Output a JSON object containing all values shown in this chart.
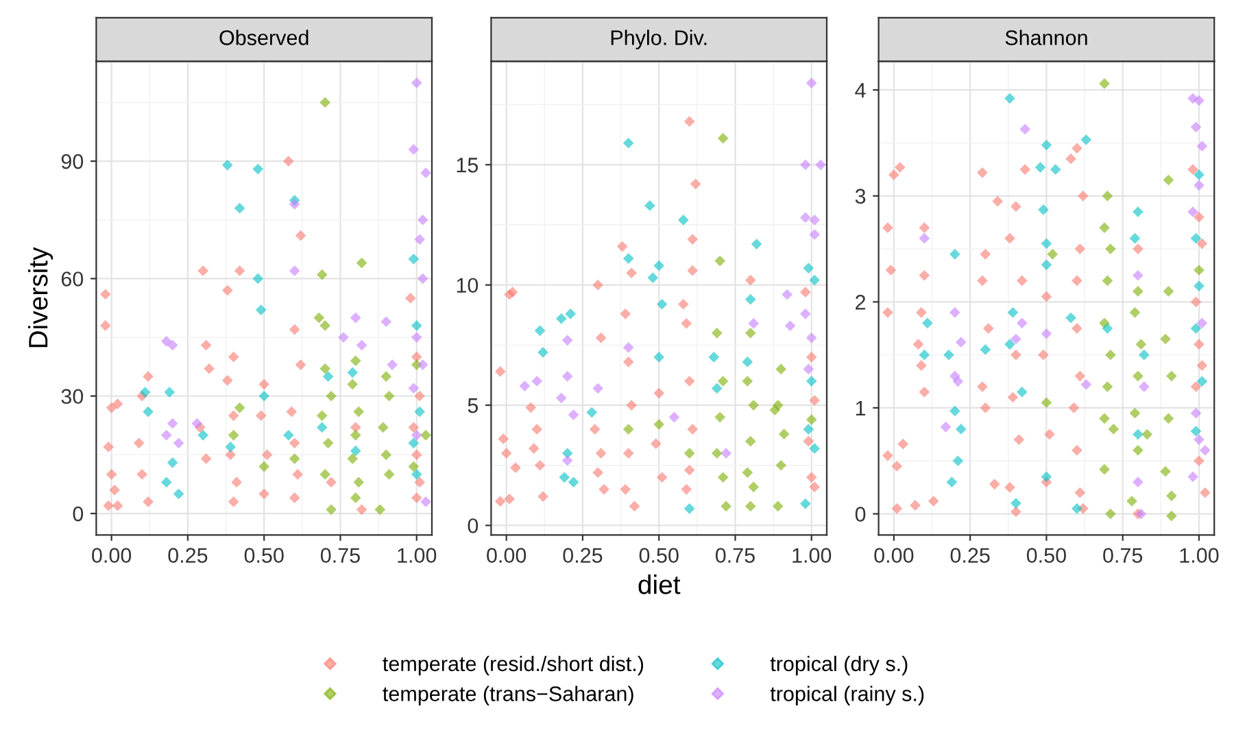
{
  "chart_data": [
    {
      "type": "scatter",
      "title": "Observed",
      "ylabel": "Diversity",
      "marker": "diamond",
      "grid": true,
      "xlim": [
        -0.05,
        1.05
      ],
      "xticks": [
        {
          "value": 0,
          "label": "0.00"
        },
        {
          "value": 0.25,
          "label": "0.25"
        },
        {
          "value": 0.5,
          "label": "0.50"
        },
        {
          "value": 0.75,
          "label": "0.75"
        },
        {
          "value": 1,
          "label": "1.00"
        }
      ],
      "ylim": [
        -5.5,
        115.5
      ],
      "yticks": [
        0,
        30,
        60,
        90
      ],
      "series": [
        {
          "color": "#f8766d",
          "x": [
            -0.02,
            -0.02,
            0,
            0.02,
            -0.01,
            0,
            0.01,
            -0.01,
            0.02,
            0.1,
            0.09,
            0.1,
            0.12,
            0.12,
            0.3,
            0.31,
            0.32,
            0.29,
            0.31,
            0.38,
            0.42,
            0.4,
            0.38,
            0.4,
            0.39,
            0.41,
            0.4,
            0.5,
            0.49,
            0.51,
            0.5,
            0.58,
            0.62,
            0.6,
            0.62,
            0.59,
            0.6,
            0.61,
            0.6,
            0.82,
            0.98,
            1.0,
            1.01,
            0.99,
            1.0,
            1.01,
            1.0,
            0.8,
            0.72
          ],
          "values": [
            56,
            48,
            27,
            28,
            17,
            10,
            6,
            2,
            2,
            30,
            18,
            10,
            35,
            3,
            62,
            43,
            37,
            22,
            14,
            57,
            62,
            40,
            34,
            25,
            15,
            8,
            3,
            33,
            25,
            15,
            5,
            90,
            71,
            47,
            38,
            26,
            18,
            10,
            4,
            1,
            55,
            40,
            30,
            22,
            15,
            8,
            4,
            22,
            8
          ]
        },
        {
          "color": "#7cae00",
          "x": [
            0.69,
            0.68,
            0.7,
            0.7,
            0.72,
            0.69,
            0.71,
            0.7,
            0.72,
            0.8,
            0.79,
            0.81,
            0.8,
            0.79,
            0.81,
            0.8,
            0.82,
            0.9,
            0.91,
            0.89,
            0.9,
            0.91,
            0.88,
            1.0,
            1.03,
            0.99,
            0.4,
            0.5,
            0.6,
            0.42,
            0.7
          ],
          "values": [
            61,
            50,
            48,
            37,
            30,
            25,
            18,
            10,
            1,
            39,
            33,
            26,
            20,
            14,
            8,
            4,
            64,
            35,
            30,
            22,
            15,
            10,
            1,
            38,
            20,
            12,
            20,
            12,
            14,
            27,
            105
          ]
        },
        {
          "color": "#00bfc4",
          "x": [
            0.38,
            0.48,
            0.42,
            0.6,
            0.48,
            0.49,
            0.5,
            0.2,
            0.18,
            0.22,
            0.19,
            0.11,
            0.12,
            0.39,
            0.69,
            0.71,
            0.79,
            0.8,
            0.99,
            1.0,
            1.01,
            0.99,
            1.0,
            0.3,
            0.58
          ],
          "values": [
            89,
            88,
            78,
            80,
            60,
            52,
            30,
            13,
            8,
            5,
            31,
            31,
            26,
            17,
            22,
            35,
            36,
            16,
            65,
            48,
            26,
            18,
            10,
            20,
            20
          ]
        },
        {
          "color": "#c77cff",
          "x": [
            1.0,
            0.99,
            1.03,
            1.02,
            1.01,
            1.02,
            1.0,
            1.02,
            0.99,
            1.0,
            1.03,
            0.18,
            0.2,
            0.2,
            0.18,
            0.22,
            0.6,
            0.8,
            0.82,
            0.9,
            0.92,
            0.76,
            0.28,
            0.6
          ],
          "values": [
            110,
            93,
            87,
            75,
            70,
            60,
            45,
            38,
            32,
            20,
            3,
            44,
            43,
            23,
            20,
            18,
            79,
            50,
            43,
            49,
            38,
            45,
            23,
            62
          ]
        }
      ]
    },
    {
      "type": "scatter",
      "title": "Phylo. Div.",
      "xlabel": "diet",
      "marker": "diamond",
      "grid": true,
      "legend": "bottom",
      "xlim": [
        -0.05,
        1.05
      ],
      "xticks": [
        {
          "value": 0,
          "label": "0.00"
        },
        {
          "value": 0.25,
          "label": "0.25"
        },
        {
          "value": 0.5,
          "label": "0.50"
        },
        {
          "value": 0.75,
          "label": "0.75"
        },
        {
          "value": 1,
          "label": "1.00"
        }
      ],
      "ylim": [
        -0.4,
        19.3
      ],
      "yticks": [
        0,
        5,
        10,
        15
      ],
      "series": [
        {
          "name": "temperate (resid./short dist.)",
          "color": "#f8766d",
          "x": [
            -0.02,
            0.02,
            0.01,
            -0.01,
            0,
            -0.02,
            0.01,
            0.03,
            0.08,
            0.1,
            0.09,
            0.11,
            0.12,
            0.3,
            0.31,
            0.29,
            0.31,
            0.3,
            0.32,
            0.38,
            0.39,
            0.4,
            0.41,
            0.4,
            0.39,
            0.42,
            0.41,
            0.5,
            0.49,
            0.51,
            0.58,
            0.6,
            0.62,
            0.61,
            0.61,
            0.59,
            0.6,
            0.61,
            0.6,
            0.59,
            0.98,
            1.0,
            1.01,
            0.99,
            1.0,
            1.01,
            0.8
          ],
          "values": [
            6.4,
            9.7,
            9.6,
            3.6,
            3,
            1,
            1.1,
            2.4,
            4.9,
            4,
            3.2,
            2.5,
            1.2,
            10,
            7.8,
            4,
            3,
            2.2,
            1.5,
            11.6,
            8.8,
            6.8,
            5,
            3,
            1.5,
            0.8,
            10.5,
            5.5,
            3.4,
            2,
            9.2,
            16.8,
            14.2,
            11.9,
            10.6,
            8.4,
            6,
            4,
            2.3,
            1.5,
            9.7,
            7,
            5.2,
            3.5,
            2,
            1.6,
            10.2
          ]
        },
        {
          "name": "temperate (trans−Saharan)",
          "color": "#7cae00",
          "x": [
            0.71,
            0.7,
            0.69,
            0.71,
            0.7,
            0.69,
            0.71,
            0.72,
            0.8,
            0.79,
            0.81,
            0.8,
            0.79,
            0.81,
            0.8,
            0.9,
            0.89,
            0.91,
            0.9,
            0.89,
            0.5,
            0.6,
            0.4,
            1.0,
            0.88
          ],
          "values": [
            16.1,
            11,
            8,
            6,
            4.5,
            3,
            2,
            0.8,
            8,
            6,
            5,
            3.5,
            2.2,
            1.6,
            0.8,
            6.5,
            5,
            3.8,
            2.5,
            0.8,
            4.2,
            3,
            4,
            4.4,
            4.8
          ]
        },
        {
          "name": "tropical (dry s.)",
          "color": "#00bfc4",
          "x": [
            0.4,
            0.47,
            0.58,
            0.82,
            0.5,
            0.48,
            0.51,
            0.4,
            0.18,
            0.21,
            0.11,
            0.12,
            0.2,
            0.19,
            0.22,
            0.28,
            0.5,
            0.6,
            0.68,
            0.69,
            0.8,
            0.79,
            0.99,
            1.01,
            1.0,
            0.99,
            1.01,
            0.98
          ],
          "values": [
            15.9,
            13.3,
            12.7,
            11.7,
            10.8,
            10.3,
            9.2,
            11.1,
            8.6,
            8.8,
            8.1,
            7.2,
            3,
            2,
            1.8,
            4.7,
            7,
            0.7,
            7,
            5.7,
            9.4,
            6.8,
            10.7,
            10.2,
            6,
            4,
            3.2,
            0.9
          ]
        },
        {
          "name": "tropical (rainy s.)",
          "color": "#c77cff",
          "x": [
            1.0,
            0.98,
            1.03,
            0.98,
            1.01,
            1.01,
            0.98,
            1.0,
            0.99,
            0.2,
            0.2,
            0.18,
            0.22,
            0.2,
            0.92,
            0.93,
            0.81,
            0.72,
            0.06,
            0.1,
            0.3,
            0.4,
            0.55
          ],
          "values": [
            18.4,
            15,
            15,
            12.8,
            12.7,
            12.1,
            8.8,
            7.8,
            6.5,
            7.7,
            6.2,
            5.3,
            4.6,
            2.7,
            9.6,
            8.3,
            8.4,
            3,
            5.8,
            6,
            5.7,
            7.4,
            4.5
          ]
        }
      ]
    },
    {
      "type": "scatter",
      "title": "Shannon",
      "marker": "diamond",
      "grid": true,
      "xlim": [
        -0.05,
        1.05
      ],
      "xticks": [
        {
          "value": 0,
          "label": "0.00"
        },
        {
          "value": 0.25,
          "label": "0.25"
        },
        {
          "value": 0.5,
          "label": "0.50"
        },
        {
          "value": 0.75,
          "label": "0.75"
        },
        {
          "value": 1,
          "label": "1.00"
        }
      ],
      "ylim": [
        -0.2,
        4.27
      ],
      "yticks": [
        0,
        1,
        2,
        3,
        4
      ],
      "series": [
        {
          "color": "#f8766d",
          "x": [
            -0.02,
            0,
            0.02,
            -0.01,
            -0.02,
            0.01,
            -0.02,
            0.03,
            0.01,
            0.1,
            0.1,
            0.09,
            0.09,
            0.08,
            0.1,
            0.13,
            0.07,
            0.3,
            0.29,
            0.31,
            0.29,
            0.3,
            0.33,
            0.29,
            0.34,
            0.38,
            0.4,
            0.42,
            0.4,
            0.39,
            0.41,
            0.38,
            0.4,
            0.43,
            0.5,
            0.49,
            0.51,
            0.5,
            0.58,
            0.6,
            0.62,
            0.61,
            0.6,
            0.6,
            0.61,
            0.59,
            0.6,
            0.61,
            0.62,
            0.98,
            1.0,
            1.01,
            0.99,
            1.0,
            1.01,
            0.99,
            1.0,
            1.02,
            0.8,
            0.8
          ],
          "values": [
            2.7,
            3.2,
            3.27,
            2.3,
            1.9,
            0.45,
            0.55,
            0.66,
            0.05,
            2.7,
            2.25,
            1.9,
            1.4,
            1.6,
            1.15,
            0.12,
            0.08,
            2.45,
            2.2,
            1.75,
            1.2,
            1,
            0.28,
            3.22,
            2.95,
            2.6,
            2.9,
            2.2,
            1.5,
            1.1,
            0.7,
            0.25,
            0.02,
            3.25,
            2.05,
            1.5,
            0.75,
            0.3,
            3.35,
            3.45,
            3,
            2.5,
            2.2,
            1.75,
            1.3,
            1,
            0.6,
            0.2,
            0.05,
            3.25,
            2.8,
            2.55,
            2,
            1.6,
            1.4,
            1.2,
            0.5,
            0.2,
            2.5,
            0
          ]
        },
        {
          "color": "#7cae00",
          "x": [
            0.69,
            0.7,
            0.69,
            0.71,
            0.7,
            0.69,
            0.71,
            0.7,
            0.69,
            0.72,
            0.69,
            0.71,
            0.8,
            0.79,
            0.81,
            0.8,
            0.79,
            0.83,
            0.8,
            0.78,
            0.9,
            0.9,
            0.89,
            0.91,
            0.9,
            0.89,
            0.91,
            0.91,
            0.5,
            0.52,
            1.0
          ],
          "values": [
            4.06,
            3,
            2.7,
            2.5,
            2.2,
            1.8,
            1.5,
            1.2,
            0.9,
            0.8,
            0.42,
            0,
            2.1,
            1.9,
            1.6,
            1.3,
            0.95,
            0.75,
            0.6,
            0.12,
            3.15,
            2.1,
            1.65,
            1.3,
            0.9,
            0.4,
            0.17,
            -0.02,
            1.05,
            2.45,
            2.3
          ]
        },
        {
          "color": "#00bfc4",
          "x": [
            0.38,
            0.5,
            0.53,
            0.48,
            0.63,
            0.49,
            0.5,
            0.5,
            0.42,
            0.39,
            0.38,
            0.5,
            0.4,
            0.2,
            0.18,
            0.2,
            0.21,
            0.19,
            0.22,
            0.11,
            0.1,
            0.3,
            0.7,
            0.8,
            0.79,
            0.82,
            0.8,
            1.0,
            0.99,
            1.0,
            0.99,
            1.01,
            0.99,
            0.6,
            0.58
          ],
          "values": [
            3.92,
            3.48,
            3.25,
            3.27,
            3.53,
            2.87,
            2.55,
            2.35,
            1.15,
            1.9,
            1.6,
            0.35,
            0.1,
            2.45,
            1.5,
            0.97,
            0.5,
            0.3,
            0.8,
            1.8,
            1.5,
            1.55,
            1.75,
            2.85,
            2.6,
            1.5,
            0.75,
            3.2,
            2.6,
            2.15,
            1.75,
            1.25,
            0.78,
            0.05,
            1.85
          ]
        },
        {
          "color": "#c77cff",
          "x": [
            0.98,
            1.0,
            0.99,
            1.01,
            1.0,
            0.98,
            1.01,
            0.99,
            1.0,
            1.02,
            0.98,
            0.2,
            0.21,
            0.22,
            0.2,
            0.17,
            0.43,
            0.42,
            0.4,
            0.8,
            0.8,
            0.81,
            0.82,
            0.1,
            0.5,
            0.63
          ],
          "values": [
            3.92,
            3.9,
            3.65,
            3.47,
            3.1,
            2.85,
            1.8,
            0.95,
            0.7,
            0.6,
            0.35,
            1.3,
            1.25,
            1.62,
            1.9,
            0.82,
            3.63,
            1.8,
            1.65,
            2.25,
            0.3,
            0.0,
            1.2,
            2.6,
            1.7,
            1.22
          ]
        }
      ]
    }
  ]
}
